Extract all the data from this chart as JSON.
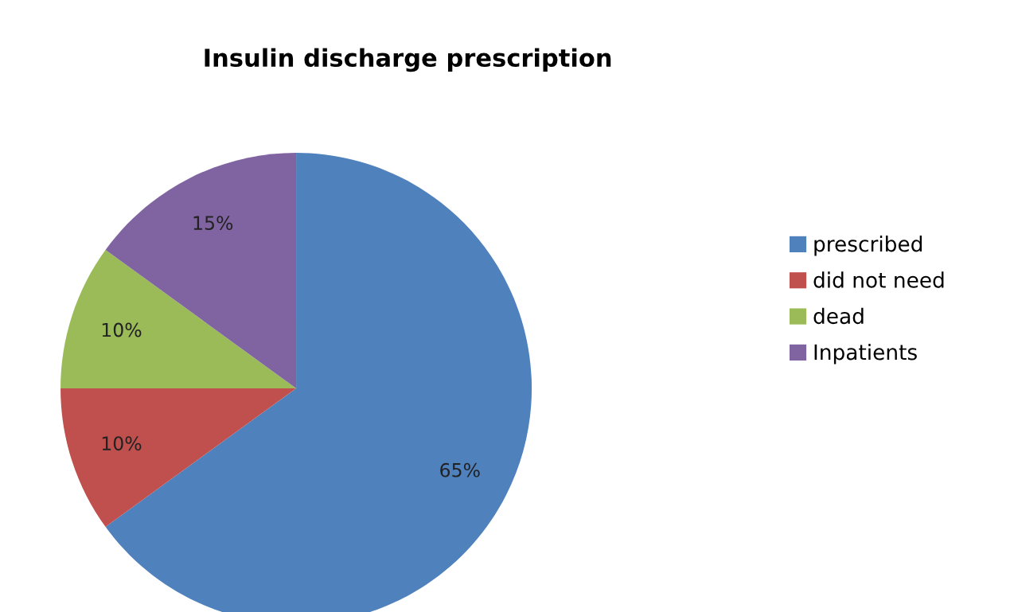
{
  "chart_data": {
    "type": "pie",
    "title": "Insulin discharge prescription",
    "categories": [
      "prescribed",
      "did not need",
      "dead",
      "Inpatients"
    ],
    "values": [
      65,
      10,
      10,
      15
    ],
    "colors": [
      "#4f81bd",
      "#c0504d",
      "#9bbb59",
      "#8064a2"
    ],
    "value_labels": [
      "65%",
      "10%",
      "10%",
      "15%"
    ],
    "legend": "right"
  }
}
